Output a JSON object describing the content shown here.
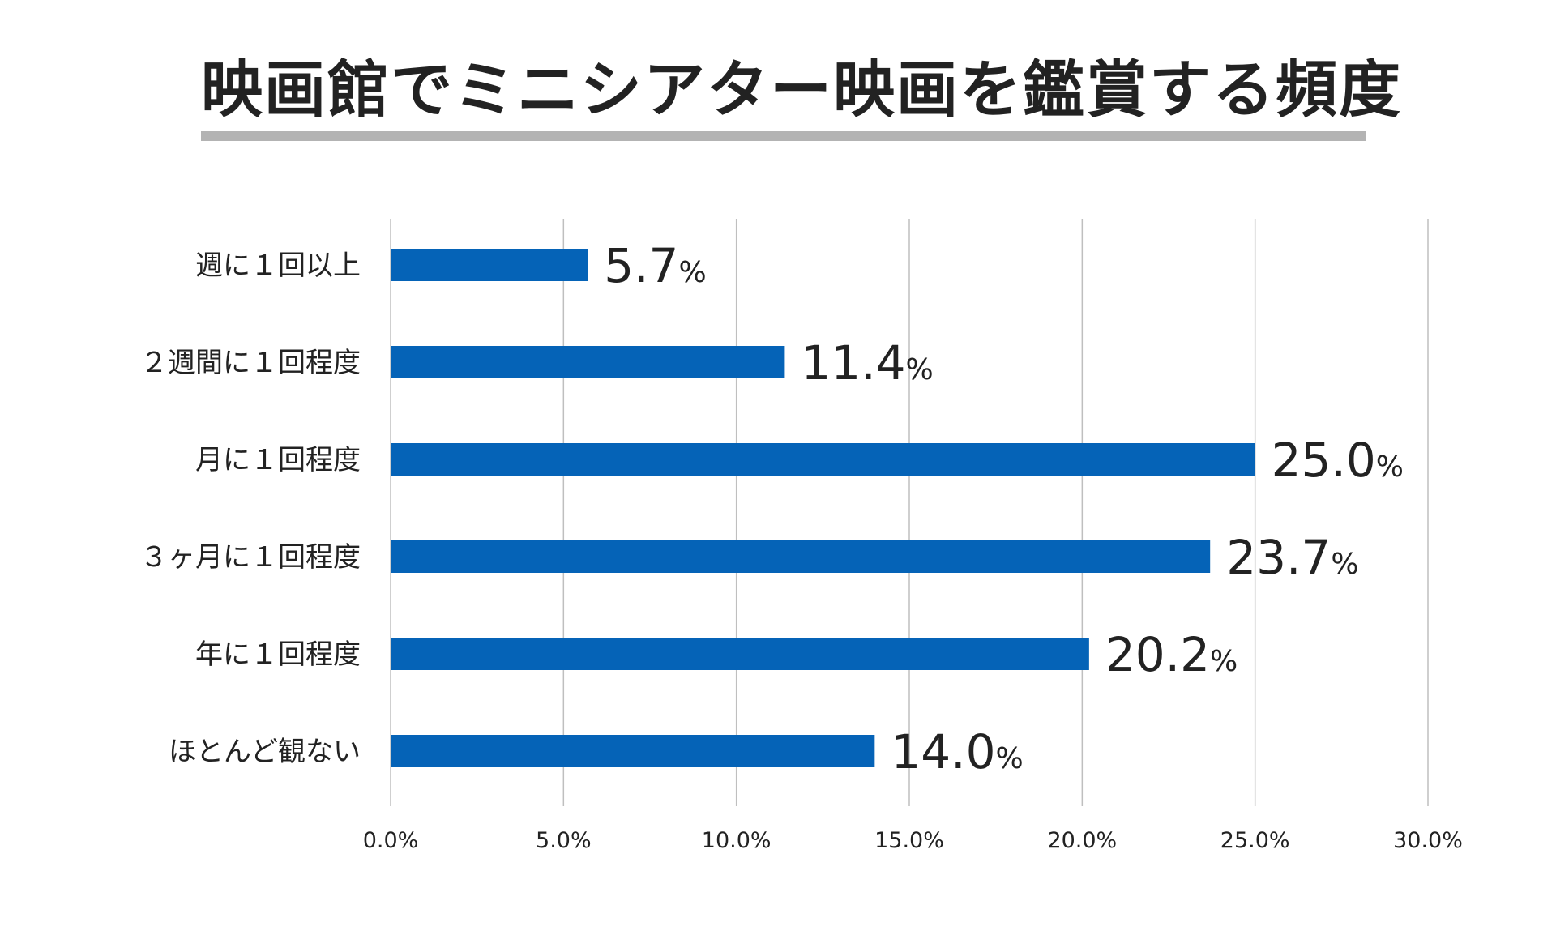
{
  "chart_data": {
    "type": "bar",
    "orientation": "horizontal",
    "title": "映画館でミニシアター映画を鑑賞する頻度",
    "categories": [
      "週に１回以上",
      "２週間に１回程度",
      "月に１回程度",
      "３ヶ月に１回程度",
      "年に１回程度",
      "ほとんど観ない"
    ],
    "values": [
      5.7,
      11.4,
      25.0,
      23.7,
      20.2,
      14.0
    ],
    "value_labels": [
      "5.7",
      "11.4",
      "25.0",
      "23.7",
      "20.2",
      "14.0"
    ],
    "value_unit": "%",
    "xlim": [
      0,
      30
    ],
    "xticks": [
      "0.0%",
      "5.0%",
      "10.0%",
      "15.0%",
      "20.0%",
      "25.0%",
      "30.0%"
    ],
    "xtick_values": [
      0,
      5,
      10,
      15,
      20,
      25,
      30
    ],
    "grid": true,
    "legend": "none",
    "bar_color": "#0563b7",
    "grid_color": "#bfbfbf",
    "title_underline_color": "#b3b3b3"
  }
}
